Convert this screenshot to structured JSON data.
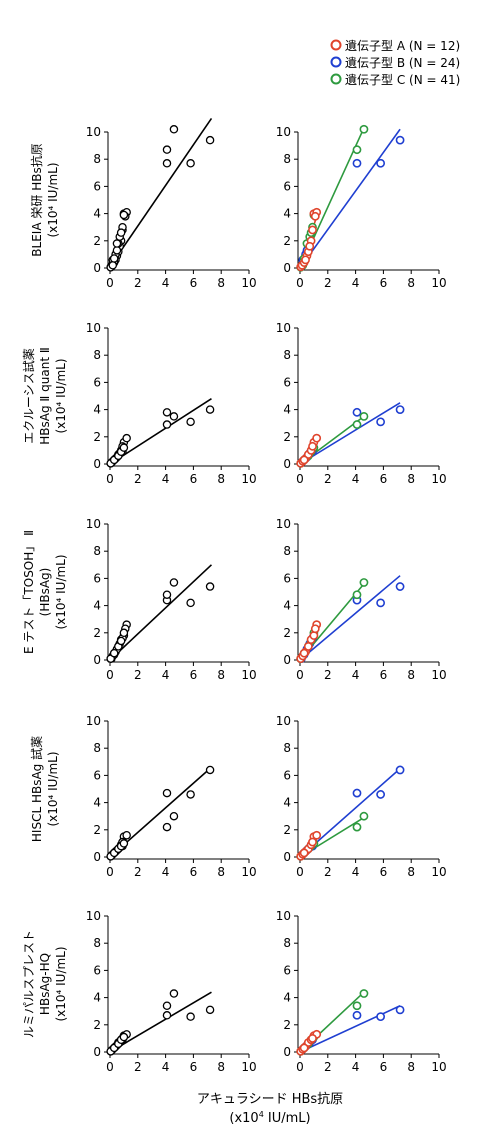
{
  "legend": {
    "entries": [
      {
        "label": "遺伝子型 A (N = 12)",
        "color": "#e0442c"
      },
      {
        "label": "遺伝子型 B (N = 24)",
        "color": "#1f3fd1"
      },
      {
        "label": "遺伝子型 C (N = 41)",
        "color": "#2e9a3f"
      }
    ]
  },
  "xlabel": {
    "line1": "アキュラシード HBs抗原",
    "line2": "(x10",
    "sup": "4",
    "line3": " IU/mL)"
  },
  "chart_data": [
    {
      "type": "scatter",
      "ylabel": [
        "BLEIA 栄研 HBs抗原",
        "(x10⁴ IU/mL)"
      ],
      "xlim": [
        0,
        10
      ],
      "ylim": [
        0,
        10
      ],
      "ticks": [
        0,
        2,
        4,
        6,
        8,
        10
      ],
      "points": {
        "A": [
          [
            0.05,
            0.08
          ],
          [
            0.15,
            0.2
          ],
          [
            0.3,
            0.4
          ],
          [
            0.5,
            0.9
          ],
          [
            0.6,
            1.2
          ],
          [
            0.8,
            2.0
          ],
          [
            0.9,
            2.8
          ],
          [
            1.0,
            4.0
          ],
          [
            1.2,
            4.1
          ],
          [
            1.1,
            3.8
          ],
          [
            0.7,
            1.6
          ],
          [
            0.4,
            0.6
          ]
        ],
        "B": [
          [
            0.1,
            0.1
          ],
          [
            0.2,
            0.3
          ],
          [
            0.3,
            0.5
          ],
          [
            0.4,
            1.0
          ],
          [
            0.6,
            1.8
          ],
          [
            4.1,
            7.7
          ],
          [
            5.8,
            7.7
          ],
          [
            7.2,
            9.4
          ],
          [
            0.5,
            1.3
          ],
          [
            0.2,
            0.6
          ]
        ],
        "C": [
          [
            0.05,
            0.05
          ],
          [
            0.2,
            0.2
          ],
          [
            0.5,
            1.8
          ],
          [
            0.7,
            2.3
          ],
          [
            0.9,
            3.0
          ],
          [
            4.1,
            8.7
          ],
          [
            4.6,
            10.2
          ],
          [
            0.3,
            0.7
          ],
          [
            0.8,
            2.6
          ],
          [
            1.0,
            3.9
          ]
        ]
      },
      "overall_fit": [
        [
          0,
          0.1
        ],
        [
          7.3,
          11.0
        ]
      ],
      "fits": {
        "A": [
          [
            0,
            0.05
          ],
          [
            1.3,
            4.1
          ]
        ],
        "B": [
          [
            0,
            0.0
          ],
          [
            7.2,
            10.2
          ]
        ],
        "C": [
          [
            0,
            0.0
          ],
          [
            4.6,
            10.3
          ]
        ]
      }
    },
    {
      "type": "scatter",
      "ylabel": [
        "エクルーシス試薬",
        "HBsAg Ⅱ quant Ⅱ",
        "(x10⁴ IU/mL)"
      ],
      "xlim": [
        0,
        10
      ],
      "ylim": [
        0,
        10
      ],
      "ticks": [
        0,
        2,
        4,
        6,
        8,
        10
      ],
      "points": {
        "A": [
          [
            0.05,
            0.05
          ],
          [
            0.2,
            0.2
          ],
          [
            0.4,
            0.4
          ],
          [
            0.6,
            0.7
          ],
          [
            0.8,
            1.0
          ],
          [
            1.0,
            1.6
          ],
          [
            1.2,
            1.9
          ],
          [
            0.9,
            1.3
          ],
          [
            0.3,
            0.3
          ]
        ],
        "B": [
          [
            0.1,
            0.1
          ],
          [
            0.3,
            0.3
          ],
          [
            0.5,
            0.5
          ],
          [
            4.1,
            3.8
          ],
          [
            5.8,
            3.1
          ],
          [
            7.2,
            4.0
          ],
          [
            0.7,
            0.8
          ],
          [
            0.9,
            0.9
          ]
        ],
        "C": [
          [
            0.05,
            0.05
          ],
          [
            0.3,
            0.3
          ],
          [
            0.6,
            0.6
          ],
          [
            4.1,
            2.9
          ],
          [
            4.6,
            3.5
          ],
          [
            0.8,
            0.9
          ],
          [
            1.0,
            1.2
          ]
        ]
      },
      "overall_fit": [
        [
          0,
          0.0
        ],
        [
          7.3,
          4.8
        ]
      ],
      "fits": {
        "A": [
          [
            0,
            0.0
          ],
          [
            1.3,
            1.8
          ]
        ],
        "B": [
          [
            0,
            0.0
          ],
          [
            7.2,
            4.5
          ]
        ],
        "C": [
          [
            0,
            0.0
          ],
          [
            4.6,
            3.5
          ]
        ]
      }
    },
    {
      "type": "scatter",
      "ylabel": [
        "E テスト「TOSOH」 Ⅱ",
        "(HBsAg)",
        "(x10⁴ IU/mL)"
      ],
      "xlim": [
        0,
        10
      ],
      "ylim": [
        0,
        10
      ],
      "ticks": [
        0,
        2,
        4,
        6,
        8,
        10
      ],
      "points": {
        "A": [
          [
            0.05,
            0.1
          ],
          [
            0.2,
            0.3
          ],
          [
            0.4,
            0.6
          ],
          [
            0.6,
            1.0
          ],
          [
            0.8,
            1.5
          ],
          [
            1.0,
            1.8
          ],
          [
            1.2,
            2.6
          ],
          [
            1.1,
            2.3
          ],
          [
            0.3,
            0.5
          ]
        ],
        "B": [
          [
            0.1,
            0.1
          ],
          [
            0.3,
            0.4
          ],
          [
            0.5,
            0.8
          ],
          [
            4.1,
            4.4
          ],
          [
            5.8,
            4.2
          ],
          [
            7.2,
            5.4
          ],
          [
            0.7,
            1.2
          ],
          [
            0.9,
            1.6
          ]
        ],
        "C": [
          [
            0.05,
            0.1
          ],
          [
            0.3,
            0.5
          ],
          [
            0.6,
            1.0
          ],
          [
            4.1,
            4.8
          ],
          [
            4.6,
            5.7
          ],
          [
            0.8,
            1.4
          ],
          [
            1.0,
            2.0
          ]
        ]
      },
      "overall_fit": [
        [
          0,
          0.0
        ],
        [
          7.3,
          7.0
        ]
      ],
      "fits": {
        "A": [
          [
            0,
            0.0
          ],
          [
            1.3,
            2.5
          ]
        ],
        "B": [
          [
            0,
            0.0
          ],
          [
            7.2,
            6.2
          ]
        ],
        "C": [
          [
            0,
            0.0
          ],
          [
            4.6,
            5.6
          ]
        ]
      }
    },
    {
      "type": "scatter",
      "ylabel": [
        "HISCL HBsAg 試薬",
        "(x10⁴ IU/mL)"
      ],
      "xlim": [
        0,
        10
      ],
      "ylim": [
        0,
        10
      ],
      "ticks": [
        0,
        2,
        4,
        6,
        8,
        10
      ],
      "points": {
        "A": [
          [
            0.05,
            0.05
          ],
          [
            0.2,
            0.2
          ],
          [
            0.4,
            0.4
          ],
          [
            0.6,
            0.6
          ],
          [
            0.8,
            0.9
          ],
          [
            1.0,
            1.5
          ],
          [
            1.2,
            1.6
          ],
          [
            0.9,
            1.1
          ],
          [
            0.3,
            0.3
          ]
        ],
        "B": [
          [
            0.1,
            0.1
          ],
          [
            0.3,
            0.3
          ],
          [
            0.5,
            0.5
          ],
          [
            4.1,
            4.7
          ],
          [
            5.8,
            4.6
          ],
          [
            7.2,
            6.4
          ],
          [
            0.7,
            0.7
          ],
          [
            0.9,
            0.8
          ]
        ],
        "C": [
          [
            0.05,
            0.05
          ],
          [
            0.3,
            0.3
          ],
          [
            0.6,
            0.6
          ],
          [
            4.1,
            2.2
          ],
          [
            4.6,
            3.0
          ],
          [
            0.8,
            0.8
          ],
          [
            1.0,
            1.0
          ]
        ]
      },
      "overall_fit": [
        [
          0,
          0.0
        ],
        [
          7.3,
          6.6
        ]
      ],
      "fits": {
        "A": [
          [
            0,
            0.0
          ],
          [
            1.3,
            1.7
          ]
        ],
        "B": [
          [
            0,
            0.0
          ],
          [
            7.2,
            6.5
          ]
        ],
        "C": [
          [
            0,
            0.0
          ],
          [
            4.6,
            2.9
          ]
        ]
      }
    },
    {
      "type": "scatter",
      "ylabel": [
        "ルミパルスプレスト",
        "HBsAg-HQ",
        "(x10⁴ IU/mL)"
      ],
      "xlim": [
        0,
        10
      ],
      "ylim": [
        0,
        10
      ],
      "ticks": [
        0,
        2,
        4,
        6,
        8,
        10
      ],
      "points": {
        "A": [
          [
            0.05,
            0.05
          ],
          [
            0.2,
            0.2
          ],
          [
            0.4,
            0.4
          ],
          [
            0.6,
            0.7
          ],
          [
            0.8,
            0.9
          ],
          [
            1.0,
            1.2
          ],
          [
            1.2,
            1.3
          ],
          [
            0.9,
            1.0
          ],
          [
            0.3,
            0.3
          ]
        ],
        "B": [
          [
            0.1,
            0.1
          ],
          [
            0.3,
            0.3
          ],
          [
            0.5,
            0.5
          ],
          [
            4.1,
            2.7
          ],
          [
            5.8,
            2.6
          ],
          [
            7.2,
            3.1
          ],
          [
            0.7,
            0.7
          ],
          [
            0.9,
            0.9
          ]
        ],
        "C": [
          [
            0.05,
            0.05
          ],
          [
            0.3,
            0.3
          ],
          [
            0.6,
            0.6
          ],
          [
            4.1,
            3.4
          ],
          [
            4.6,
            4.3
          ],
          [
            0.8,
            0.9
          ],
          [
            1.0,
            1.1
          ]
        ]
      },
      "overall_fit": [
        [
          0,
          0.0
        ],
        [
          7.3,
          4.4
        ]
      ],
      "fits": {
        "A": [
          [
            0,
            0.0
          ],
          [
            1.3,
            1.4
          ]
        ],
        "B": [
          [
            0,
            0.0
          ],
          [
            7.2,
            3.4
          ]
        ],
        "C": [
          [
            0,
            0.0
          ],
          [
            4.6,
            4.4
          ]
        ]
      }
    }
  ]
}
